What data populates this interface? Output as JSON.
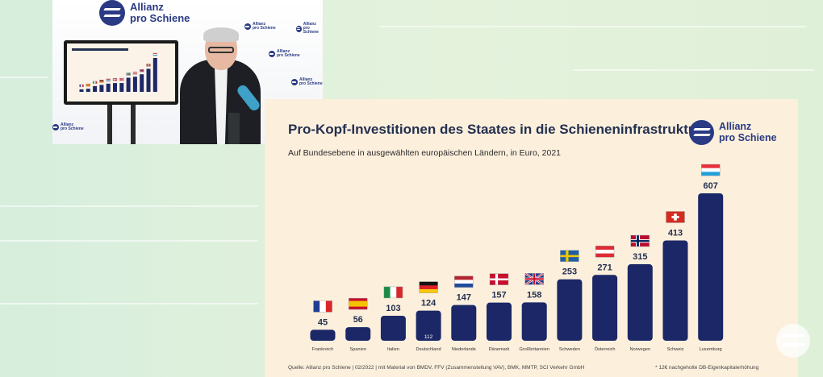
{
  "video": {
    "brand_line1": "Allianz",
    "brand_line2": "pro Schiene",
    "badge_line1": "Allianz",
    "badge_line2": "pro Schiene"
  },
  "slide": {
    "brand_line1": "Allianz",
    "brand_line2": "pro Schiene",
    "source": "Quelle: Allianz pro Schiene | 02/2022 | mit Material von BMDV, FFV (Zusammenstellung VAV), BMK, MMTP, SCI Verkehr GmbH",
    "footnote": "* 12€ nachgeholte DB-Eigenkapitalerhöhung"
  },
  "chart_data": {
    "type": "bar",
    "title": "Pro-Kopf-Investitionen des Staates in die Schieneninfrastruktur",
    "subtitle": "Auf Bundesebene in ausgewählten europäischen Ländern, in Euro, 2021",
    "categories": [
      "Frankreich",
      "Spanien",
      "Italien",
      "Deutschland",
      "Niederlande",
      "Dänemark",
      "Großbritannien",
      "Schweden",
      "Österreich",
      "Norwegen",
      "Schweiz",
      "Luxemburg"
    ],
    "values": [
      45,
      56,
      103,
      124,
      147,
      157,
      158,
      253,
      271,
      315,
      413,
      607
    ],
    "value_labels": [
      "45",
      "56",
      "103",
      "124",
      "147",
      "157",
      "158",
      "253",
      "271",
      "315",
      "413",
      "607"
    ],
    "inner_labels": [
      "",
      "",
      "",
      "112",
      "",
      "",
      "",
      "",
      "",
      "",
      "",
      ""
    ],
    "flags": [
      "fr",
      "es",
      "it",
      "de",
      "nl",
      "dk",
      "gb",
      "se",
      "at",
      "no",
      "ch",
      "lu"
    ],
    "ylim": [
      0,
      607
    ],
    "bar_color": "#1b2766",
    "label_color": "#243050"
  }
}
